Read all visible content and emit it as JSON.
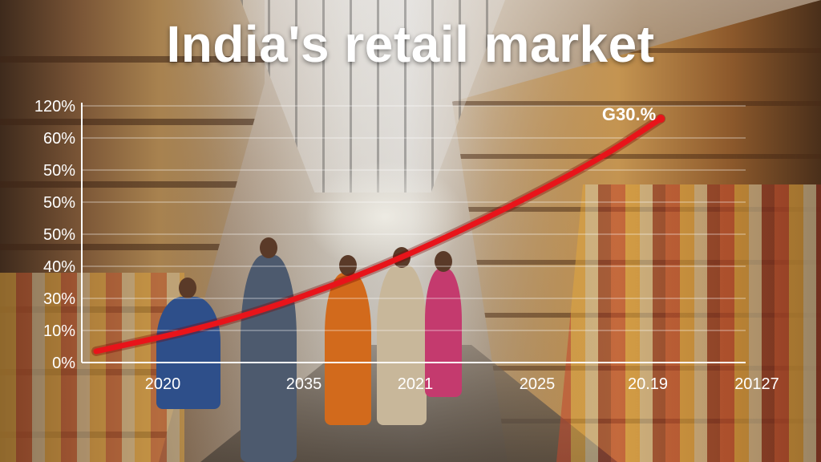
{
  "title": "India's retail market",
  "chart_data": {
    "type": "line",
    "title": "India's retail market",
    "xlabel": "",
    "ylabel": "",
    "y_tick_labels": [
      "0%",
      "10%",
      "30%",
      "40%",
      "50%",
      "50%",
      "50%",
      "60%",
      "120%"
    ],
    "x_tick_labels": [
      "2020",
      "2035",
      "2021",
      "2025",
      "20.19",
      "20127"
    ],
    "annotation": "G30.%",
    "grid": true,
    "series": [
      {
        "color": "#e8141a",
        "points": [
          {
            "x": 0,
            "y": 0.35
          },
          {
            "x": 1,
            "y": 1.2
          },
          {
            "x": 2,
            "y": 2.5
          },
          {
            "x": 3,
            "y": 4.2
          },
          {
            "x": 4,
            "y": 6.2
          },
          {
            "x": 4.55,
            "y": 7.6
          }
        ]
      }
    ]
  }
}
